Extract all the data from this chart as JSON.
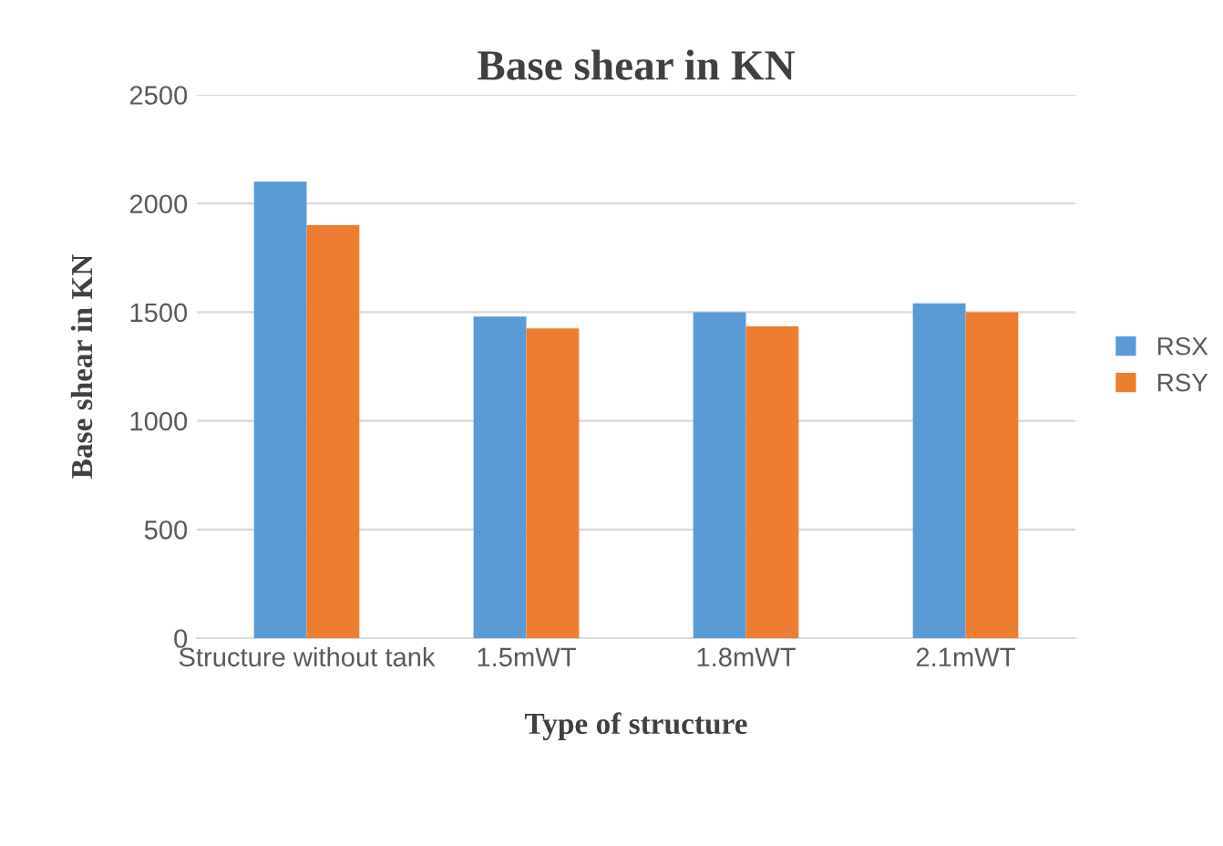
{
  "chart_data": {
    "type": "bar",
    "title": "Base shear in KN",
    "xlabel": "Type of structure",
    "ylabel": "Base shear in KN",
    "categories": [
      "Structure without tank",
      "1.5mWT",
      "1.8mWT",
      "2.1mWT"
    ],
    "series": [
      {
        "name": "RSX",
        "color": "#5b9bd5",
        "values": [
          2100,
          1480,
          1500,
          1540
        ]
      },
      {
        "name": "RSY",
        "color": "#ed7d31",
        "values": [
          1900,
          1425,
          1435,
          1500
        ]
      }
    ],
    "ylim": [
      0,
      2500
    ],
    "yticks": [
      0,
      500,
      1000,
      1500,
      2000,
      2500
    ],
    "grid": "y",
    "legend": "right"
  }
}
